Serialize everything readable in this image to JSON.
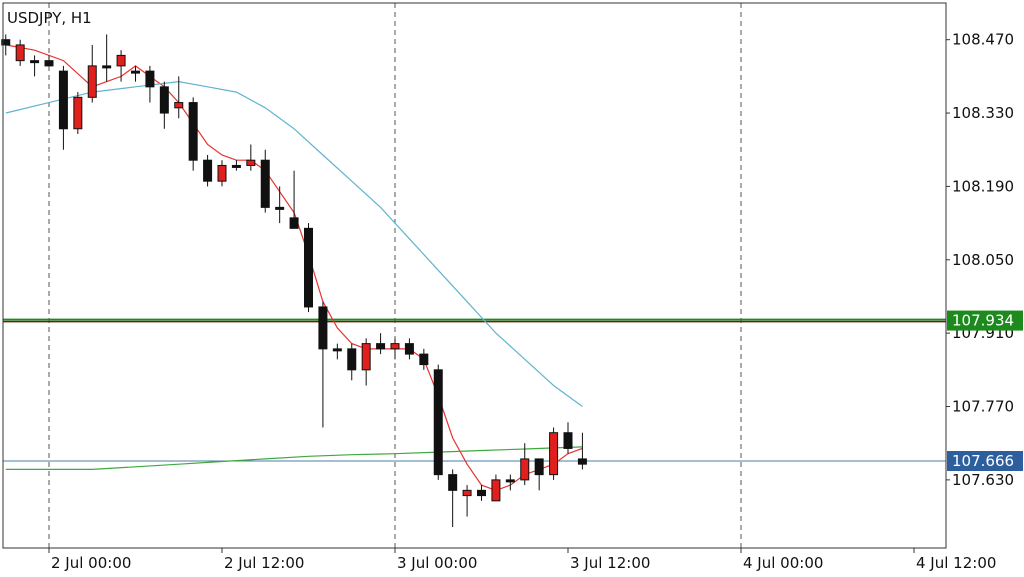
{
  "chart_data": {
    "type": "candlestick",
    "title": "USDJPY, H1",
    "ylim": [
      107.5,
      108.54
    ],
    "y_ticks": [
      "108.470",
      "108.330",
      "108.190",
      "108.050",
      "107.910",
      "107.770",
      "107.630"
    ],
    "y_tick_values": [
      108.47,
      108.33,
      108.19,
      108.05,
      107.91,
      107.77,
      107.63
    ],
    "x_ticks": [
      "2 Jul 00:00",
      "2 Jul 12:00",
      "3 Jul 00:00",
      "3 Jul 12:00",
      "4 Jul 00:00",
      "4 Jul 12:00"
    ],
    "x_tick_hours": [
      0,
      12,
      24,
      36,
      48,
      60
    ],
    "x_start_hour": -3,
    "x_end_hour": 66,
    "grid": "dashed vertical lines at day boundaries",
    "levels": [
      {
        "value": 107.934,
        "label": "107.934",
        "color": "#1d8a1d",
        "line_color": "#7a1515"
      },
      {
        "value": 107.666,
        "label": "107.666",
        "color": "#2d5f9e",
        "line_color": "#4a7fa8"
      }
    ],
    "candles": [
      {
        "h": -3,
        "o": 108.47,
        "c": 108.46,
        "hi": 108.48,
        "lo": 108.44
      },
      {
        "h": -2,
        "o": 108.43,
        "c": 108.46,
        "hi": 108.47,
        "lo": 108.42
      },
      {
        "h": -1,
        "o": 108.43,
        "c": 108.43,
        "hi": 108.44,
        "lo": 108.4
      },
      {
        "h": 0,
        "o": 108.43,
        "c": 108.42,
        "hi": 108.44,
        "lo": 108.42
      },
      {
        "h": 1,
        "o": 108.41,
        "c": 108.3,
        "hi": 108.42,
        "lo": 108.26
      },
      {
        "h": 2,
        "o": 108.3,
        "c": 108.36,
        "hi": 108.37,
        "lo": 108.29
      },
      {
        "h": 3,
        "o": 108.36,
        "c": 108.42,
        "hi": 108.46,
        "lo": 108.35
      },
      {
        "h": 4,
        "o": 108.42,
        "c": 108.42,
        "hi": 108.48,
        "lo": 108.39
      },
      {
        "h": 5,
        "o": 108.42,
        "c": 108.44,
        "hi": 108.45,
        "lo": 108.39
      },
      {
        "h": 6,
        "o": 108.41,
        "c": 108.41,
        "hi": 108.42,
        "lo": 108.39
      },
      {
        "h": 7,
        "o": 108.41,
        "c": 108.38,
        "hi": 108.42,
        "lo": 108.35
      },
      {
        "h": 8,
        "o": 108.38,
        "c": 108.33,
        "hi": 108.39,
        "lo": 108.3
      },
      {
        "h": 9,
        "o": 108.34,
        "c": 108.35,
        "hi": 108.4,
        "lo": 108.32
      },
      {
        "h": 10,
        "o": 108.35,
        "c": 108.24,
        "hi": 108.36,
        "lo": 108.22
      },
      {
        "h": 11,
        "o": 108.24,
        "c": 108.2,
        "hi": 108.25,
        "lo": 108.19
      },
      {
        "h": 12,
        "o": 108.2,
        "c": 108.23,
        "hi": 108.24,
        "lo": 108.19
      },
      {
        "h": 13,
        "o": 108.23,
        "c": 108.23,
        "hi": 108.24,
        "lo": 108.22
      },
      {
        "h": 14,
        "o": 108.23,
        "c": 108.24,
        "hi": 108.27,
        "lo": 108.22
      },
      {
        "h": 15,
        "o": 108.24,
        "c": 108.15,
        "hi": 108.26,
        "lo": 108.14
      },
      {
        "h": 16,
        "o": 108.15,
        "c": 108.15,
        "hi": 108.19,
        "lo": 108.12
      },
      {
        "h": 17,
        "o": 108.13,
        "c": 108.11,
        "hi": 108.22,
        "lo": 108.11
      },
      {
        "h": 18,
        "o": 108.11,
        "c": 107.96,
        "hi": 108.12,
        "lo": 107.95
      },
      {
        "h": 19,
        "o": 107.96,
        "c": 107.88,
        "hi": 107.97,
        "lo": 107.73
      },
      {
        "h": 20,
        "o": 107.88,
        "c": 107.88,
        "hi": 107.89,
        "lo": 107.86
      },
      {
        "h": 21,
        "o": 107.88,
        "c": 107.84,
        "hi": 107.89,
        "lo": 107.82
      },
      {
        "h": 22,
        "o": 107.84,
        "c": 107.89,
        "hi": 107.9,
        "lo": 107.81
      },
      {
        "h": 23,
        "o": 107.89,
        "c": 107.88,
        "hi": 107.91,
        "lo": 107.87
      },
      {
        "h": 24,
        "o": 107.88,
        "c": 107.89,
        "hi": 107.9,
        "lo": 107.86
      },
      {
        "h": 25,
        "o": 107.89,
        "c": 107.87,
        "hi": 107.9,
        "lo": 107.86
      },
      {
        "h": 26,
        "o": 107.87,
        "c": 107.85,
        "hi": 107.88,
        "lo": 107.84
      },
      {
        "h": 27,
        "o": 107.84,
        "c": 107.64,
        "hi": 107.85,
        "lo": 107.63
      },
      {
        "h": 28,
        "o": 107.64,
        "c": 107.61,
        "hi": 107.65,
        "lo": 107.54
      },
      {
        "h": 29,
        "o": 107.6,
        "c": 107.61,
        "hi": 107.62,
        "lo": 107.56
      },
      {
        "h": 30,
        "o": 107.61,
        "c": 107.6,
        "hi": 107.62,
        "lo": 107.59
      },
      {
        "h": 31,
        "o": 107.59,
        "c": 107.63,
        "hi": 107.64,
        "lo": 107.59
      },
      {
        "h": 32,
        "o": 107.63,
        "c": 107.63,
        "hi": 107.64,
        "lo": 107.61
      },
      {
        "h": 33,
        "o": 107.63,
        "c": 107.67,
        "hi": 107.7,
        "lo": 107.62
      },
      {
        "h": 34,
        "o": 107.67,
        "c": 107.64,
        "hi": 107.67,
        "lo": 107.61
      },
      {
        "h": 35,
        "o": 107.64,
        "c": 107.72,
        "hi": 107.73,
        "lo": 107.63
      },
      {
        "h": 36,
        "o": 107.72,
        "c": 107.69,
        "hi": 107.74,
        "lo": 107.68
      },
      {
        "h": 37,
        "o": 107.67,
        "c": 107.66,
        "hi": 107.72,
        "lo": 107.65
      }
    ],
    "series": [
      {
        "color": "#e8322d",
        "points": [
          [
            -3,
            108.46
          ],
          [
            -1,
            108.45
          ],
          [
            1,
            108.43
          ],
          [
            3,
            108.38
          ],
          [
            5,
            108.4
          ],
          [
            6,
            108.42
          ],
          [
            7,
            108.4
          ],
          [
            8,
            108.38
          ],
          [
            9,
            108.35
          ],
          [
            10,
            108.31
          ],
          [
            11,
            108.27
          ],
          [
            12,
            108.25
          ],
          [
            13,
            108.24
          ],
          [
            14,
            108.24
          ],
          [
            15,
            108.22
          ],
          [
            16,
            108.18
          ],
          [
            17,
            108.14
          ],
          [
            18,
            108.06
          ],
          [
            19,
            107.97
          ],
          [
            20,
            107.92
          ],
          [
            21,
            107.89
          ],
          [
            22,
            107.88
          ],
          [
            23,
            107.88
          ],
          [
            24,
            107.88
          ],
          [
            25,
            107.88
          ],
          [
            26,
            107.86
          ],
          [
            27,
            107.79
          ],
          [
            28,
            107.71
          ],
          [
            29,
            107.66
          ],
          [
            30,
            107.62
          ],
          [
            31,
            107.61
          ],
          [
            32,
            107.62
          ],
          [
            33,
            107.64
          ],
          [
            34,
            107.65
          ],
          [
            35,
            107.66
          ],
          [
            36,
            107.68
          ],
          [
            37,
            107.69
          ]
        ]
      },
      {
        "color": "#5fb4d0",
        "points": [
          [
            -3,
            108.33
          ],
          [
            0,
            108.35
          ],
          [
            3,
            108.37
          ],
          [
            6,
            108.38
          ],
          [
            9,
            108.39
          ],
          [
            11,
            108.38
          ],
          [
            13,
            108.37
          ],
          [
            15,
            108.34
          ],
          [
            17,
            108.3
          ],
          [
            19,
            108.25
          ],
          [
            21,
            108.2
          ],
          [
            23,
            108.15
          ],
          [
            25,
            108.09
          ],
          [
            27,
            108.03
          ],
          [
            29,
            107.97
          ],
          [
            31,
            107.91
          ],
          [
            33,
            107.86
          ],
          [
            35,
            107.81
          ],
          [
            37,
            107.77
          ]
        ]
      },
      {
        "color": "#3fa83f",
        "points": [
          [
            -3,
            107.65
          ],
          [
            0,
            107.65
          ],
          [
            3,
            107.65
          ],
          [
            6,
            107.655
          ],
          [
            9,
            107.66
          ],
          [
            12,
            107.665
          ],
          [
            15,
            107.67
          ],
          [
            18,
            107.675
          ],
          [
            21,
            107.678
          ],
          [
            24,
            107.68
          ],
          [
            27,
            107.683
          ],
          [
            30,
            107.686
          ],
          [
            33,
            107.689
          ],
          [
            36,
            107.692
          ],
          [
            37,
            107.693
          ]
        ]
      }
    ]
  }
}
